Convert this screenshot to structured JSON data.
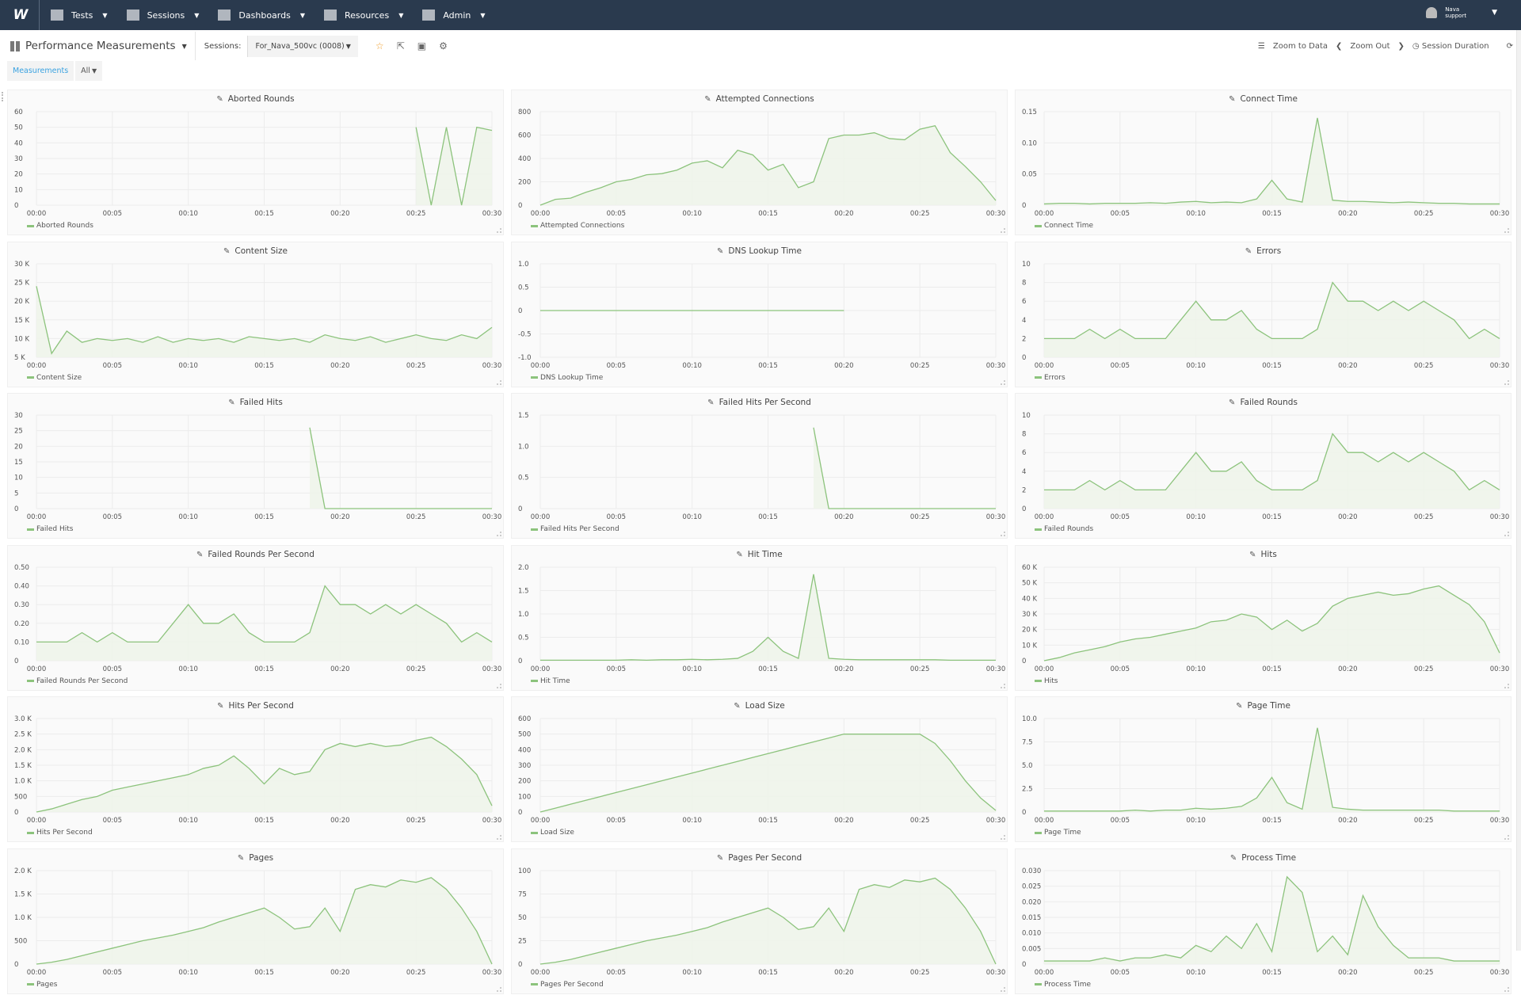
{
  "nav": {
    "logo": "W",
    "items": [
      {
        "label": "Tests",
        "icon": "list-icon"
      },
      {
        "label": "Sessions",
        "icon": "area-chart-icon"
      },
      {
        "label": "Dashboards",
        "icon": "dashboard-icon"
      },
      {
        "label": "Resources",
        "icon": "folder-icon"
      },
      {
        "label": "Admin",
        "icon": "gears-icon"
      }
    ],
    "user": {
      "name": "Nava",
      "role": "support"
    }
  },
  "toolbar": {
    "title": "Performance Measurements",
    "sessions_label": "Sessions:",
    "session_value": "For_Nava_500vc (0008)",
    "zoom_to_data": "Zoom to Data",
    "zoom_out": "Zoom Out",
    "session_duration": "Session Duration"
  },
  "tabs": {
    "measurements": "Measurements",
    "filter": "All"
  },
  "colors": {
    "nav_bg": "#2a3a4e",
    "line": "#8cc37c",
    "fill": "#eef4ea",
    "active_tab": "#3aa2e0",
    "star": "#f0a030"
  },
  "x": [
    "00:00",
    "00:01",
    "00:02",
    "00:03",
    "00:04",
    "00:05",
    "00:06",
    "00:07",
    "00:08",
    "00:09",
    "00:10",
    "00:11",
    "00:12",
    "00:13",
    "00:14",
    "00:15",
    "00:16",
    "00:17",
    "00:18",
    "00:19",
    "00:20",
    "00:21",
    "00:22",
    "00:23",
    "00:24",
    "00:25",
    "00:26",
    "00:27",
    "00:28",
    "00:29",
    "00:30"
  ],
  "x_ticks": [
    "00:00",
    "00:05",
    "00:10",
    "00:15",
    "00:20",
    "00:25",
    "00:30"
  ],
  "chart_data": [
    {
      "title": "Aborted Rounds",
      "type": "area",
      "ylim": [
        0,
        60
      ],
      "yticks": [
        0,
        10,
        20,
        30,
        40,
        50,
        60
      ],
      "ytick_labels": [
        "0",
        "10",
        "20",
        "30",
        "40",
        "50",
        "60"
      ],
      "values": [
        null,
        null,
        null,
        null,
        null,
        null,
        null,
        null,
        null,
        null,
        null,
        null,
        null,
        null,
        null,
        null,
        null,
        null,
        null,
        null,
        null,
        null,
        null,
        null,
        null,
        50,
        0,
        50,
        0,
        50,
        48
      ]
    },
    {
      "title": "Attempted Connections",
      "type": "area",
      "ylim": [
        0,
        800
      ],
      "yticks": [
        0,
        200,
        400,
        600,
        800
      ],
      "ytick_labels": [
        "0",
        "200",
        "400",
        "600",
        "800"
      ],
      "values": [
        0,
        50,
        60,
        110,
        150,
        200,
        220,
        260,
        270,
        300,
        360,
        380,
        320,
        470,
        430,
        300,
        350,
        150,
        200,
        570,
        600,
        600,
        620,
        570,
        560,
        650,
        680,
        450,
        330,
        200,
        40
      ]
    },
    {
      "title": "Connect Time",
      "type": "area",
      "ylim": [
        0,
        0.15
      ],
      "yticks": [
        0,
        0.05,
        0.1,
        0.15
      ],
      "ytick_labels": [
        "0",
        "0.05",
        "0.10",
        "0.15"
      ],
      "values": [
        0.002,
        0.003,
        0.003,
        0.002,
        0.003,
        0.003,
        0.003,
        0.004,
        0.003,
        0.005,
        0.006,
        0.004,
        0.005,
        0.004,
        0.01,
        0.04,
        0.01,
        0.005,
        0.14,
        0.008,
        0.006,
        0.006,
        0.005,
        0.004,
        0.005,
        0.004,
        0.003,
        0.003,
        0.002,
        0.002,
        0.002
      ]
    },
    {
      "title": "Content Size",
      "type": "area",
      "ylim": [
        5000,
        30000
      ],
      "yticks": [
        5000,
        10000,
        15000,
        20000,
        25000,
        30000
      ],
      "ytick_labels": [
        "5 K",
        "10 K",
        "15 K",
        "20 K",
        "25 K",
        "30 K"
      ],
      "values": [
        24000,
        6000,
        12000,
        9000,
        10000,
        9500,
        10000,
        9000,
        10500,
        9000,
        10000,
        9500,
        10000,
        9000,
        10500,
        10000,
        9500,
        10000,
        9000,
        11000,
        10000,
        9500,
        10500,
        9000,
        10000,
        11000,
        10000,
        9500,
        11000,
        10000,
        13000
      ]
    },
    {
      "title": "DNS Lookup Time",
      "type": "area",
      "ylim": [
        -1,
        1
      ],
      "yticks": [
        -1,
        -0.5,
        0,
        0.5,
        1
      ],
      "ytick_labels": [
        "-1.0",
        "-0.5",
        "0",
        "0.5",
        "1.0"
      ],
      "values": [
        0,
        0,
        0,
        0,
        0,
        0,
        0,
        0,
        0,
        0,
        0,
        0,
        0,
        0,
        0,
        0,
        0,
        0,
        0,
        0,
        0,
        null,
        null,
        null,
        null,
        null,
        null,
        null,
        null,
        null,
        null
      ]
    },
    {
      "title": "Errors",
      "type": "area",
      "ylim": [
        0,
        10
      ],
      "yticks": [
        0,
        2,
        4,
        6,
        8,
        10
      ],
      "ytick_labels": [
        "0",
        "2",
        "4",
        "6",
        "8",
        "10"
      ],
      "values": [
        2,
        2,
        2,
        3,
        2,
        3,
        2,
        2,
        2,
        4,
        6,
        4,
        4,
        5,
        3,
        2,
        2,
        2,
        3,
        8,
        6,
        6,
        5,
        6,
        5,
        6,
        5,
        4,
        2,
        3,
        2
      ]
    },
    {
      "title": "Failed Hits",
      "type": "area",
      "ylim": [
        0,
        30
      ],
      "yticks": [
        0,
        5,
        10,
        15,
        20,
        25,
        30
      ],
      "ytick_labels": [
        "0",
        "5",
        "10",
        "15",
        "20",
        "25",
        "30"
      ],
      "values": [
        null,
        null,
        null,
        null,
        null,
        null,
        null,
        null,
        null,
        null,
        null,
        null,
        null,
        null,
        null,
        null,
        null,
        null,
        26,
        0,
        0,
        0,
        0,
        0,
        0,
        0,
        0,
        0,
        0,
        0,
        0
      ]
    },
    {
      "title": "Failed Hits Per Second",
      "type": "area",
      "ylim": [
        0,
        1.5
      ],
      "yticks": [
        0,
        0.5,
        1,
        1.5
      ],
      "ytick_labels": [
        "0",
        "0.5",
        "1.0",
        "1.5"
      ],
      "values": [
        null,
        null,
        null,
        null,
        null,
        null,
        null,
        null,
        null,
        null,
        null,
        null,
        null,
        null,
        null,
        null,
        null,
        null,
        1.3,
        0,
        0,
        0,
        0,
        0,
        0,
        0,
        0,
        0,
        0,
        0,
        0
      ]
    },
    {
      "title": "Failed Rounds",
      "type": "area",
      "ylim": [
        0,
        10
      ],
      "yticks": [
        0,
        2,
        4,
        6,
        8,
        10
      ],
      "ytick_labels": [
        "0",
        "2",
        "4",
        "6",
        "8",
        "10"
      ],
      "values": [
        2,
        2,
        2,
        3,
        2,
        3,
        2,
        2,
        2,
        4,
        6,
        4,
        4,
        5,
        3,
        2,
        2,
        2,
        3,
        8,
        6,
        6,
        5,
        6,
        5,
        6,
        5,
        4,
        2,
        3,
        2
      ]
    },
    {
      "title": "Failed Rounds Per Second",
      "type": "area",
      "ylim": [
        0,
        0.5
      ],
      "yticks": [
        0,
        0.1,
        0.2,
        0.3,
        0.4,
        0.5
      ],
      "ytick_labels": [
        "0",
        "0.10",
        "0.20",
        "0.30",
        "0.40",
        "0.50"
      ],
      "values": [
        0.1,
        0.1,
        0.1,
        0.15,
        0.1,
        0.15,
        0.1,
        0.1,
        0.1,
        0.2,
        0.3,
        0.2,
        0.2,
        0.25,
        0.15,
        0.1,
        0.1,
        0.1,
        0.15,
        0.4,
        0.3,
        0.3,
        0.25,
        0.3,
        0.25,
        0.3,
        0.25,
        0.2,
        0.1,
        0.15,
        0.1
      ]
    },
    {
      "title": "Hit Time",
      "type": "area",
      "ylim": [
        0,
        2
      ],
      "yticks": [
        0,
        0.5,
        1,
        1.5,
        2
      ],
      "ytick_labels": [
        "0",
        "0.5",
        "1.0",
        "1.5",
        "2.0"
      ],
      "values": [
        0.01,
        0.01,
        0.01,
        0.01,
        0.01,
        0.01,
        0.02,
        0.01,
        0.02,
        0.02,
        0.03,
        0.02,
        0.03,
        0.05,
        0.2,
        0.5,
        0.2,
        0.05,
        1.85,
        0.05,
        0.03,
        0.02,
        0.02,
        0.02,
        0.02,
        0.02,
        0.02,
        0.01,
        0.01,
        0.01,
        0.01
      ]
    },
    {
      "title": "Hits",
      "type": "area",
      "ylim": [
        0,
        60000
      ],
      "yticks": [
        0,
        10000,
        20000,
        30000,
        40000,
        50000,
        60000
      ],
      "ytick_labels": [
        "0",
        "10 K",
        "20 K",
        "30 K",
        "40 K",
        "50 K",
        "60 K"
      ],
      "values": [
        0,
        2000,
        5000,
        7000,
        9000,
        12000,
        14000,
        15000,
        17000,
        19000,
        21000,
        25000,
        26000,
        30000,
        28000,
        20000,
        26000,
        19000,
        24000,
        35000,
        40000,
        42000,
        44000,
        42000,
        43000,
        46000,
        48000,
        42000,
        36000,
        25000,
        5000
      ]
    },
    {
      "title": "Hits Per Second",
      "type": "area",
      "ylim": [
        0,
        3000
      ],
      "yticks": [
        0,
        500,
        1000,
        1500,
        2000,
        2500,
        3000
      ],
      "ytick_labels": [
        "0",
        "500",
        "1.0 K",
        "1.5 K",
        "2.0 K",
        "2.5 K",
        "3.0 K"
      ],
      "values": [
        0,
        100,
        250,
        400,
        500,
        700,
        800,
        900,
        1000,
        1100,
        1200,
        1400,
        1500,
        1800,
        1400,
        900,
        1400,
        1200,
        1300,
        2000,
        2200,
        2100,
        2200,
        2100,
        2150,
        2300,
        2400,
        2100,
        1700,
        1200,
        200
      ]
    },
    {
      "title": "Load Size",
      "type": "area",
      "ylim": [
        0,
        600
      ],
      "yticks": [
        0,
        100,
        200,
        300,
        400,
        500,
        600
      ],
      "ytick_labels": [
        "0",
        "100",
        "200",
        "300",
        "400",
        "500",
        "600"
      ],
      "values": [
        0,
        25,
        50,
        75,
        100,
        125,
        150,
        175,
        200,
        225,
        250,
        275,
        300,
        325,
        350,
        375,
        400,
        425,
        450,
        475,
        500,
        500,
        500,
        500,
        500,
        500,
        440,
        330,
        200,
        90,
        10
      ]
    },
    {
      "title": "Page Time",
      "type": "area",
      "ylim": [
        0,
        10
      ],
      "yticks": [
        0,
        2.5,
        5,
        7.5,
        10
      ],
      "ytick_labels": [
        "0",
        "2.5",
        "5.0",
        "7.5",
        "10.0"
      ],
      "values": [
        0.1,
        0.1,
        0.1,
        0.1,
        0.1,
        0.1,
        0.2,
        0.1,
        0.2,
        0.2,
        0.4,
        0.3,
        0.4,
        0.6,
        1.5,
        3.7,
        1,
        0.3,
        9,
        0.5,
        0.3,
        0.2,
        0.2,
        0.2,
        0.2,
        0.2,
        0.2,
        0.1,
        0.1,
        0.1,
        0.1
      ]
    },
    {
      "title": "Pages",
      "type": "area",
      "ylim": [
        0,
        2000
      ],
      "yticks": [
        0,
        500,
        1000,
        1500,
        2000
      ],
      "ytick_labels": [
        "0",
        "500",
        "1.0 K",
        "1.5 K",
        "2.0 K"
      ],
      "values": [
        0,
        40,
        100,
        180,
        260,
        340,
        420,
        500,
        560,
        620,
        700,
        780,
        900,
        1000,
        1100,
        1200,
        1000,
        750,
        800,
        1200,
        700,
        1600,
        1700,
        1650,
        1800,
        1750,
        1850,
        1600,
        1200,
        700,
        0
      ]
    },
    {
      "title": "Pages Per Second",
      "type": "area",
      "ylim": [
        0,
        100
      ],
      "yticks": [
        0,
        25,
        50,
        75,
        100
      ],
      "ytick_labels": [
        "0",
        "25",
        "50",
        "75",
        "100"
      ],
      "values": [
        0,
        2,
        5,
        9,
        13,
        17,
        21,
        25,
        28,
        31,
        35,
        39,
        45,
        50,
        55,
        60,
        50,
        37,
        40,
        60,
        35,
        80,
        85,
        82,
        90,
        88,
        92,
        80,
        60,
        35,
        0
      ]
    },
    {
      "title": "Process Time",
      "type": "area",
      "ylim": [
        0,
        0.03
      ],
      "yticks": [
        0,
        0.005,
        0.01,
        0.015,
        0.02,
        0.025,
        0.03
      ],
      "ytick_labels": [
        "0",
        "0.005",
        "0.010",
        "0.015",
        "0.020",
        "0.025",
        "0.030"
      ],
      "values": [
        0.001,
        0.001,
        0.001,
        0.001,
        0.002,
        0.001,
        0.002,
        0.002,
        0.003,
        0.002,
        0.006,
        0.004,
        0.009,
        0.005,
        0.013,
        0.004,
        0.028,
        0.023,
        0.004,
        0.009,
        0.003,
        0.022,
        0.012,
        0.006,
        0.002,
        0.002,
        0.002,
        0.001,
        0.001,
        0.001,
        0.001
      ]
    }
  ]
}
